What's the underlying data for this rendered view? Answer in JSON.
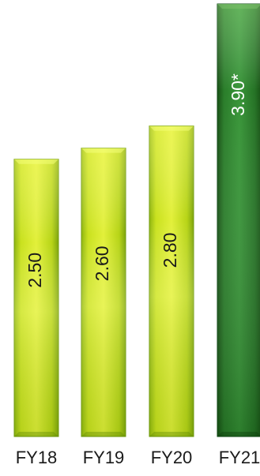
{
  "chart_data": {
    "type": "bar",
    "categories": [
      "FY18",
      "FY19",
      "FY20",
      "FY21"
    ],
    "values": [
      2.5,
      2.6,
      2.8,
      3.9
    ],
    "data_labels": [
      "2.50",
      "2.60",
      "2.80",
      "3.90*"
    ],
    "title": "",
    "xlabel": "",
    "ylabel": "",
    "ylim": [
      0,
      3.9
    ],
    "grid": false,
    "legend": "none",
    "colors": {
      "bar_light": "#c8e01c",
      "bar_light_edge": "#6f9a0c",
      "bar_highlight": "#1f7a2a",
      "bar_highlight_edge": "#0f4a16"
    }
  }
}
